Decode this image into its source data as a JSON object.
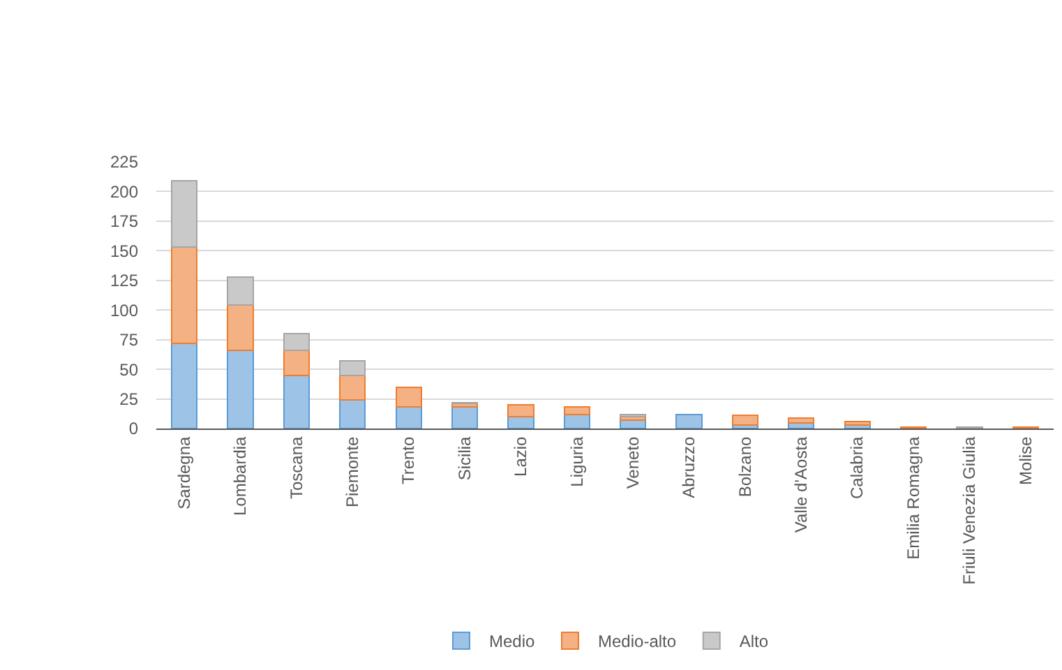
{
  "chart_data": {
    "type": "bar",
    "stacked": true,
    "categories": [
      "Sardegna",
      "Lombardia",
      "Toscana",
      "Piemonte",
      "Trento",
      "Sicilia",
      "Lazio",
      "Liguria",
      "Veneto",
      "Abruzzo",
      "Bolzano",
      "Valle d'Aosta",
      "Calabria",
      "Emilia Romagna",
      "Friuli Venezia Giulia",
      "Molise"
    ],
    "series": [
      {
        "name": "Medio",
        "color": "#9dc3e6",
        "values": [
          72,
          66,
          45,
          24,
          18,
          18,
          10,
          12,
          7,
          12,
          3,
          5,
          3,
          0,
          0,
          0
        ]
      },
      {
        "name": "Medio-alto",
        "color": "#f4b183",
        "values": [
          81,
          38,
          21,
          21,
          17,
          3,
          10,
          6,
          3,
          0,
          8,
          4,
          3,
          1,
          0,
          1
        ]
      },
      {
        "name": "Alto",
        "color": "#c9c9c9",
        "values": [
          56,
          24,
          14,
          12,
          0,
          1,
          0,
          0,
          2,
          0,
          0,
          0,
          0,
          0,
          1,
          0
        ]
      }
    ],
    "ylim": [
      0,
      225
    ],
    "yticks": [
      0,
      25,
      50,
      75,
      100,
      125,
      150,
      175,
      200,
      225
    ],
    "grid": "y",
    "legend": "bottom"
  }
}
